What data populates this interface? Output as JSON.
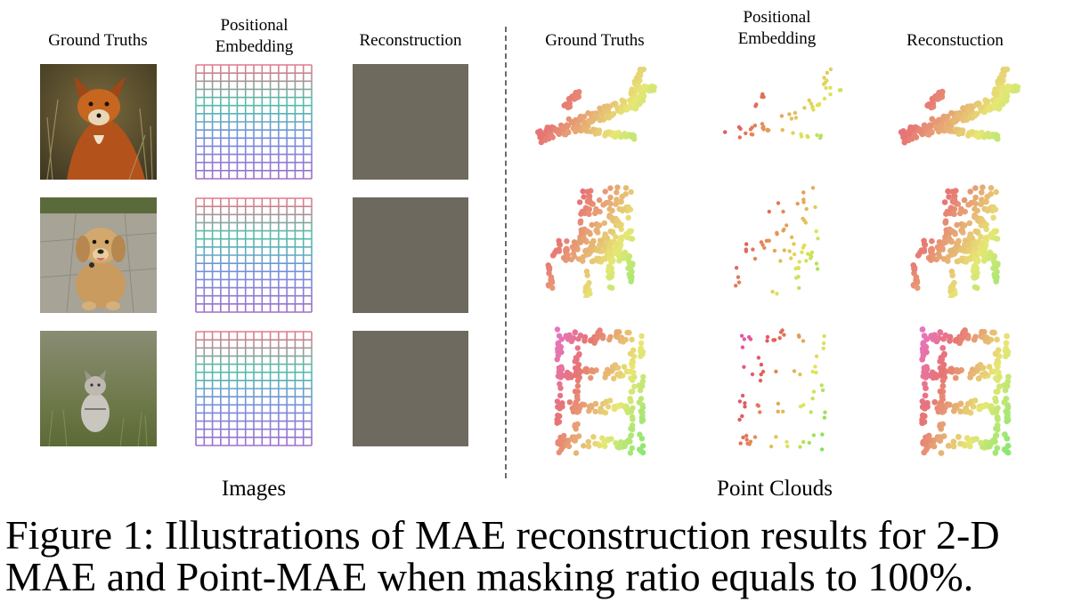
{
  "figure": {
    "images_section": {
      "columns": [
        "Ground Truths",
        "Positional\nEmbedding",
        "Reconstruction"
      ],
      "group_label": "Images",
      "rows": [
        {
          "ground_truth": "fox-photo",
          "reconstruction_color": "#6f6a5e"
        },
        {
          "ground_truth": "dog-photo",
          "reconstruction_color": "#6d695e"
        },
        {
          "ground_truth": "cat-photo",
          "reconstruction_color": "#6e6a5f"
        }
      ]
    },
    "pointcloud_section": {
      "columns": [
        "Ground Truths",
        "Positional\nEmbedding",
        "Reconstuction"
      ],
      "group_label": "Point Clouds",
      "rows": [
        "airplane",
        "chair",
        "shelf"
      ]
    },
    "caption_line1": "Figure 1: Illustrations of MAE reconstruction results for 2-D",
    "caption_line2": "MAE and Point-MAE when masking ratio equals to 100%."
  }
}
